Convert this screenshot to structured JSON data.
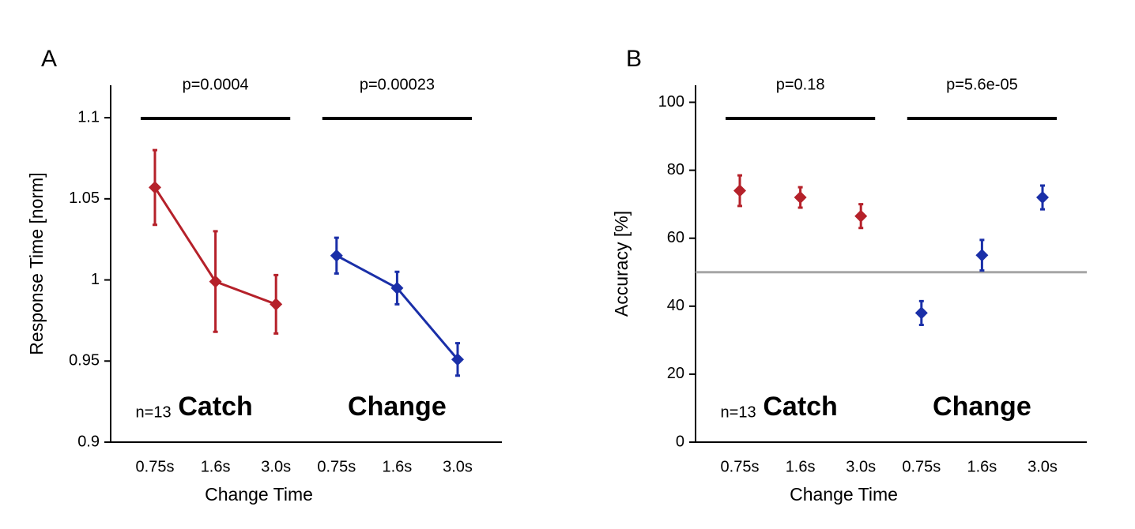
{
  "chart_data": [
    {
      "type": "line",
      "title": "A",
      "ylabel": "Response Time [norm]",
      "xlabel": "Change Time",
      "categories": [
        "0.75s",
        "1.6s",
        "3.0s",
        "0.75s",
        "1.6s",
        "3.0s"
      ],
      "ylim": [
        0.9,
        1.12
      ],
      "yticks": [
        0.9,
        0.95,
        1,
        1.05,
        1.1
      ],
      "sample_label": "n=13",
      "series": [
        {
          "name": "Catch",
          "color": "#b5212a",
          "values": [
            1.057,
            0.999,
            0.985,
            null,
            null,
            null
          ],
          "errors": [
            0.023,
            0.031,
            0.018,
            null,
            null,
            null
          ],
          "annotation": "p=0.0004"
        },
        {
          "name": "Change",
          "color": "#1a2fa8",
          "values": [
            null,
            null,
            null,
            1.015,
            0.995,
            0.951
          ],
          "errors": [
            null,
            null,
            null,
            0.011,
            0.01,
            0.01
          ],
          "annotation": "p=0.00023"
        }
      ]
    },
    {
      "type": "scatter",
      "title": "B",
      "ylabel": "Accuracy [%]",
      "xlabel": "Change Time",
      "categories": [
        "0.75s",
        "1.6s",
        "3.0s",
        "0.75s",
        "1.6s",
        "3.0s"
      ],
      "ylim": [
        0,
        105
      ],
      "yticks": [
        0,
        20,
        40,
        60,
        80,
        100
      ],
      "hline": 50,
      "hline_color": "#a6a6a6",
      "sample_label": "n=13",
      "series": [
        {
          "name": "Catch",
          "color": "#b5212a",
          "values": [
            74,
            72,
            66.5,
            null,
            null,
            null
          ],
          "errors": [
            4.5,
            3,
            3.5,
            null,
            null,
            null
          ],
          "annotation": "p=0.18"
        },
        {
          "name": "Change",
          "color": "#1a2fa8",
          "values": [
            null,
            null,
            null,
            38,
            55,
            72
          ],
          "errors": [
            null,
            null,
            null,
            3.5,
            4.5,
            3.5
          ],
          "annotation": "p=5.6e-05"
        }
      ]
    }
  ]
}
